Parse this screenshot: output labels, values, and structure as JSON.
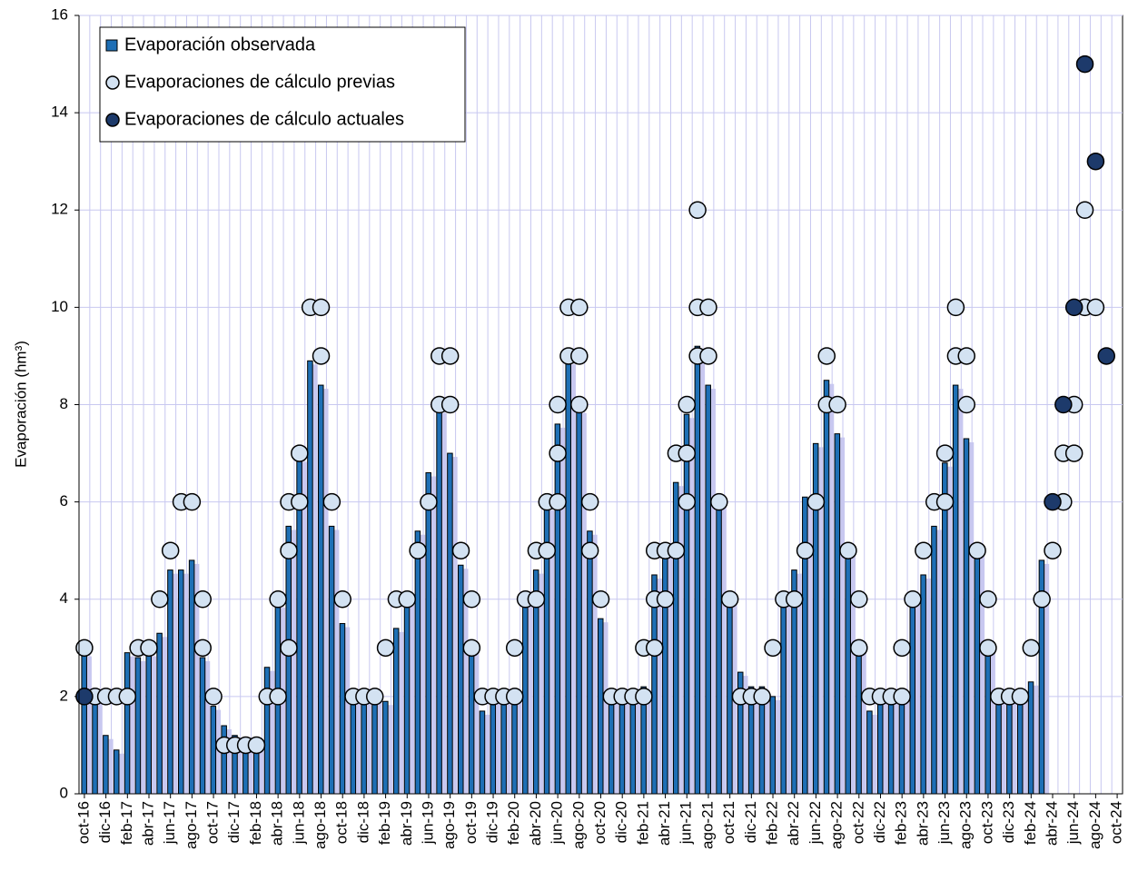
{
  "chart_data": {
    "type": "bar",
    "y_label": "Evaporación (hm³)",
    "ylim": [
      0,
      16
    ],
    "yticks": [
      0,
      2,
      4,
      6,
      8,
      10,
      12,
      14,
      16
    ],
    "grid": true,
    "legend": "upper-left",
    "categories": [
      "oct-16",
      null,
      "dic-16",
      null,
      "feb-17",
      null,
      "abr-17",
      null,
      "jun-17",
      null,
      "ago-17",
      null,
      "oct-17",
      null,
      "dic-17",
      null,
      "feb-18",
      null,
      "abr-18",
      null,
      "jun-18",
      null,
      "ago-18",
      null,
      "oct-18",
      null,
      "dic-18",
      null,
      "feb-19",
      null,
      "abr-19",
      null,
      "jun-19",
      null,
      "ago-19",
      null,
      "oct-19",
      null,
      "dic-19",
      null,
      "feb-20",
      null,
      "abr-20",
      null,
      "jun-20",
      null,
      "ago-20",
      null,
      "oct-20",
      null,
      "dic-20",
      null,
      "feb-21",
      null,
      "abr-21",
      null,
      "jun-21",
      null,
      "ago-21",
      null,
      "oct-21",
      null,
      "dic-21",
      null,
      "feb-22",
      null,
      "abr-22",
      null,
      "jun-22",
      null,
      "ago-22",
      null,
      "oct-22",
      null,
      "dic-22",
      null,
      "feb-23",
      null,
      "abr-23",
      null,
      "jun-23",
      null,
      "ago-23",
      null,
      "oct-23",
      null,
      "dic-23",
      null,
      "feb-24",
      null,
      "abr-24",
      null,
      "jun-24",
      null,
      "ago-24",
      null,
      "oct-24"
    ],
    "series": [
      {
        "name": "Evaporación observada",
        "type": "bar",
        "color": "#1e6fb5",
        "values": [
          2.9,
          2.0,
          1.2,
          0.9,
          2.9,
          2.8,
          2.9,
          3.3,
          4.6,
          4.6,
          4.8,
          2.8,
          1.8,
          1.4,
          1.2,
          1.0,
          1.0,
          2.6,
          3.9,
          5.5,
          6.9,
          8.9,
          8.4,
          5.5,
          3.5,
          2.0,
          2.0,
          2.0,
          1.9,
          3.4,
          4.0,
          5.4,
          6.6,
          7.9,
          7.0,
          4.7,
          3.0,
          1.7,
          2.0,
          2.0,
          2.0,
          4.0,
          4.6,
          5.9,
          7.6,
          8.9,
          7.9,
          5.4,
          3.6,
          2.0,
          2.0,
          2.0,
          2.2,
          4.5,
          5.0,
          6.4,
          7.8,
          9.2,
          8.4,
          6.0,
          4.0,
          2.5,
          2.2,
          2.2,
          2.0,
          4.0,
          4.6,
          6.1,
          7.2,
          8.5,
          7.4,
          5.0,
          3.0,
          1.7,
          2.0,
          2.1,
          2.0,
          4.0,
          4.5,
          5.5,
          6.8,
          8.4,
          7.3,
          5.0,
          3.0,
          2.0,
          2.0,
          2.0,
          2.3,
          4.8,
          null,
          null,
          null,
          null,
          null,
          null,
          null
        ]
      },
      {
        "name": "Evaporaciones de cálculo previas",
        "type": "scatter",
        "color": "#d3e2f2",
        "values": [
          [
            3
          ],
          [
            2
          ],
          [
            2
          ],
          [
            2
          ],
          [
            2
          ],
          [
            3
          ],
          [
            3
          ],
          [
            4
          ],
          [
            5
          ],
          [
            6
          ],
          [
            6
          ],
          [
            4,
            3
          ],
          [
            2
          ],
          [
            1
          ],
          [
            1
          ],
          [
            1
          ],
          [
            1
          ],
          [
            2
          ],
          [
            4,
            2
          ],
          [
            6,
            5,
            3
          ],
          [
            7,
            6
          ],
          [
            10
          ],
          [
            10,
            9
          ],
          [
            6
          ],
          [
            4
          ],
          [
            2
          ],
          [
            2
          ],
          [
            2
          ],
          [
            3
          ],
          [
            4
          ],
          [
            4
          ],
          [
            5
          ],
          [
            6
          ],
          [
            9,
            8
          ],
          [
            9,
            8
          ],
          [
            5
          ],
          [
            4,
            3
          ],
          [
            2
          ],
          [
            2
          ],
          [
            2
          ],
          [
            3,
            2
          ],
          [
            4
          ],
          [
            5,
            4
          ],
          [
            6,
            5
          ],
          [
            8,
            7,
            6
          ],
          [
            10,
            9
          ],
          [
            10,
            9,
            8
          ],
          [
            6,
            5
          ],
          [
            4
          ],
          [
            2
          ],
          [
            2
          ],
          [
            2
          ],
          [
            3,
            2
          ],
          [
            5,
            4,
            3
          ],
          [
            5,
            4
          ],
          [
            7,
            5
          ],
          [
            8,
            7,
            6
          ],
          [
            12,
            10,
            9
          ],
          [
            10,
            9
          ],
          [
            6
          ],
          [
            4
          ],
          [
            2
          ],
          [
            2
          ],
          [
            2
          ],
          [
            3
          ],
          [
            4
          ],
          [
            4
          ],
          [
            5
          ],
          [
            6
          ],
          [
            9,
            8
          ],
          [
            8
          ],
          [
            5
          ],
          [
            4,
            3
          ],
          [
            2
          ],
          [
            2
          ],
          [
            2
          ],
          [
            3,
            2
          ],
          [
            4
          ],
          [
            5
          ],
          [
            6
          ],
          [
            7,
            6
          ],
          [
            10,
            9
          ],
          [
            9,
            8
          ],
          [
            5
          ],
          [
            4,
            3
          ],
          [
            2
          ],
          [
            2
          ],
          [
            2
          ],
          [
            3
          ],
          [
            4
          ],
          [
            5
          ],
          [
            7,
            6
          ],
          [
            8,
            7
          ],
          [
            12,
            10
          ],
          [
            10
          ],
          null,
          null
        ]
      },
      {
        "name": "Evaporaciones de cálculo actuales",
        "type": "scatter",
        "color": "#1d3a6b",
        "values": [
          2,
          null,
          null,
          null,
          null,
          null,
          null,
          null,
          null,
          null,
          null,
          null,
          null,
          null,
          null,
          null,
          null,
          null,
          null,
          null,
          null,
          null,
          null,
          null,
          null,
          null,
          null,
          null,
          null,
          null,
          null,
          null,
          null,
          null,
          null,
          null,
          null,
          null,
          null,
          null,
          null,
          null,
          null,
          null,
          null,
          null,
          null,
          null,
          null,
          null,
          null,
          null,
          null,
          null,
          null,
          null,
          null,
          null,
          null,
          null,
          null,
          null,
          null,
          null,
          null,
          null,
          null,
          null,
          null,
          null,
          null,
          null,
          null,
          null,
          null,
          null,
          null,
          null,
          null,
          null,
          null,
          null,
          null,
          null,
          null,
          null,
          null,
          null,
          null,
          null,
          6,
          8,
          10,
          15,
          13,
          9,
          null
        ]
      }
    ]
  }
}
